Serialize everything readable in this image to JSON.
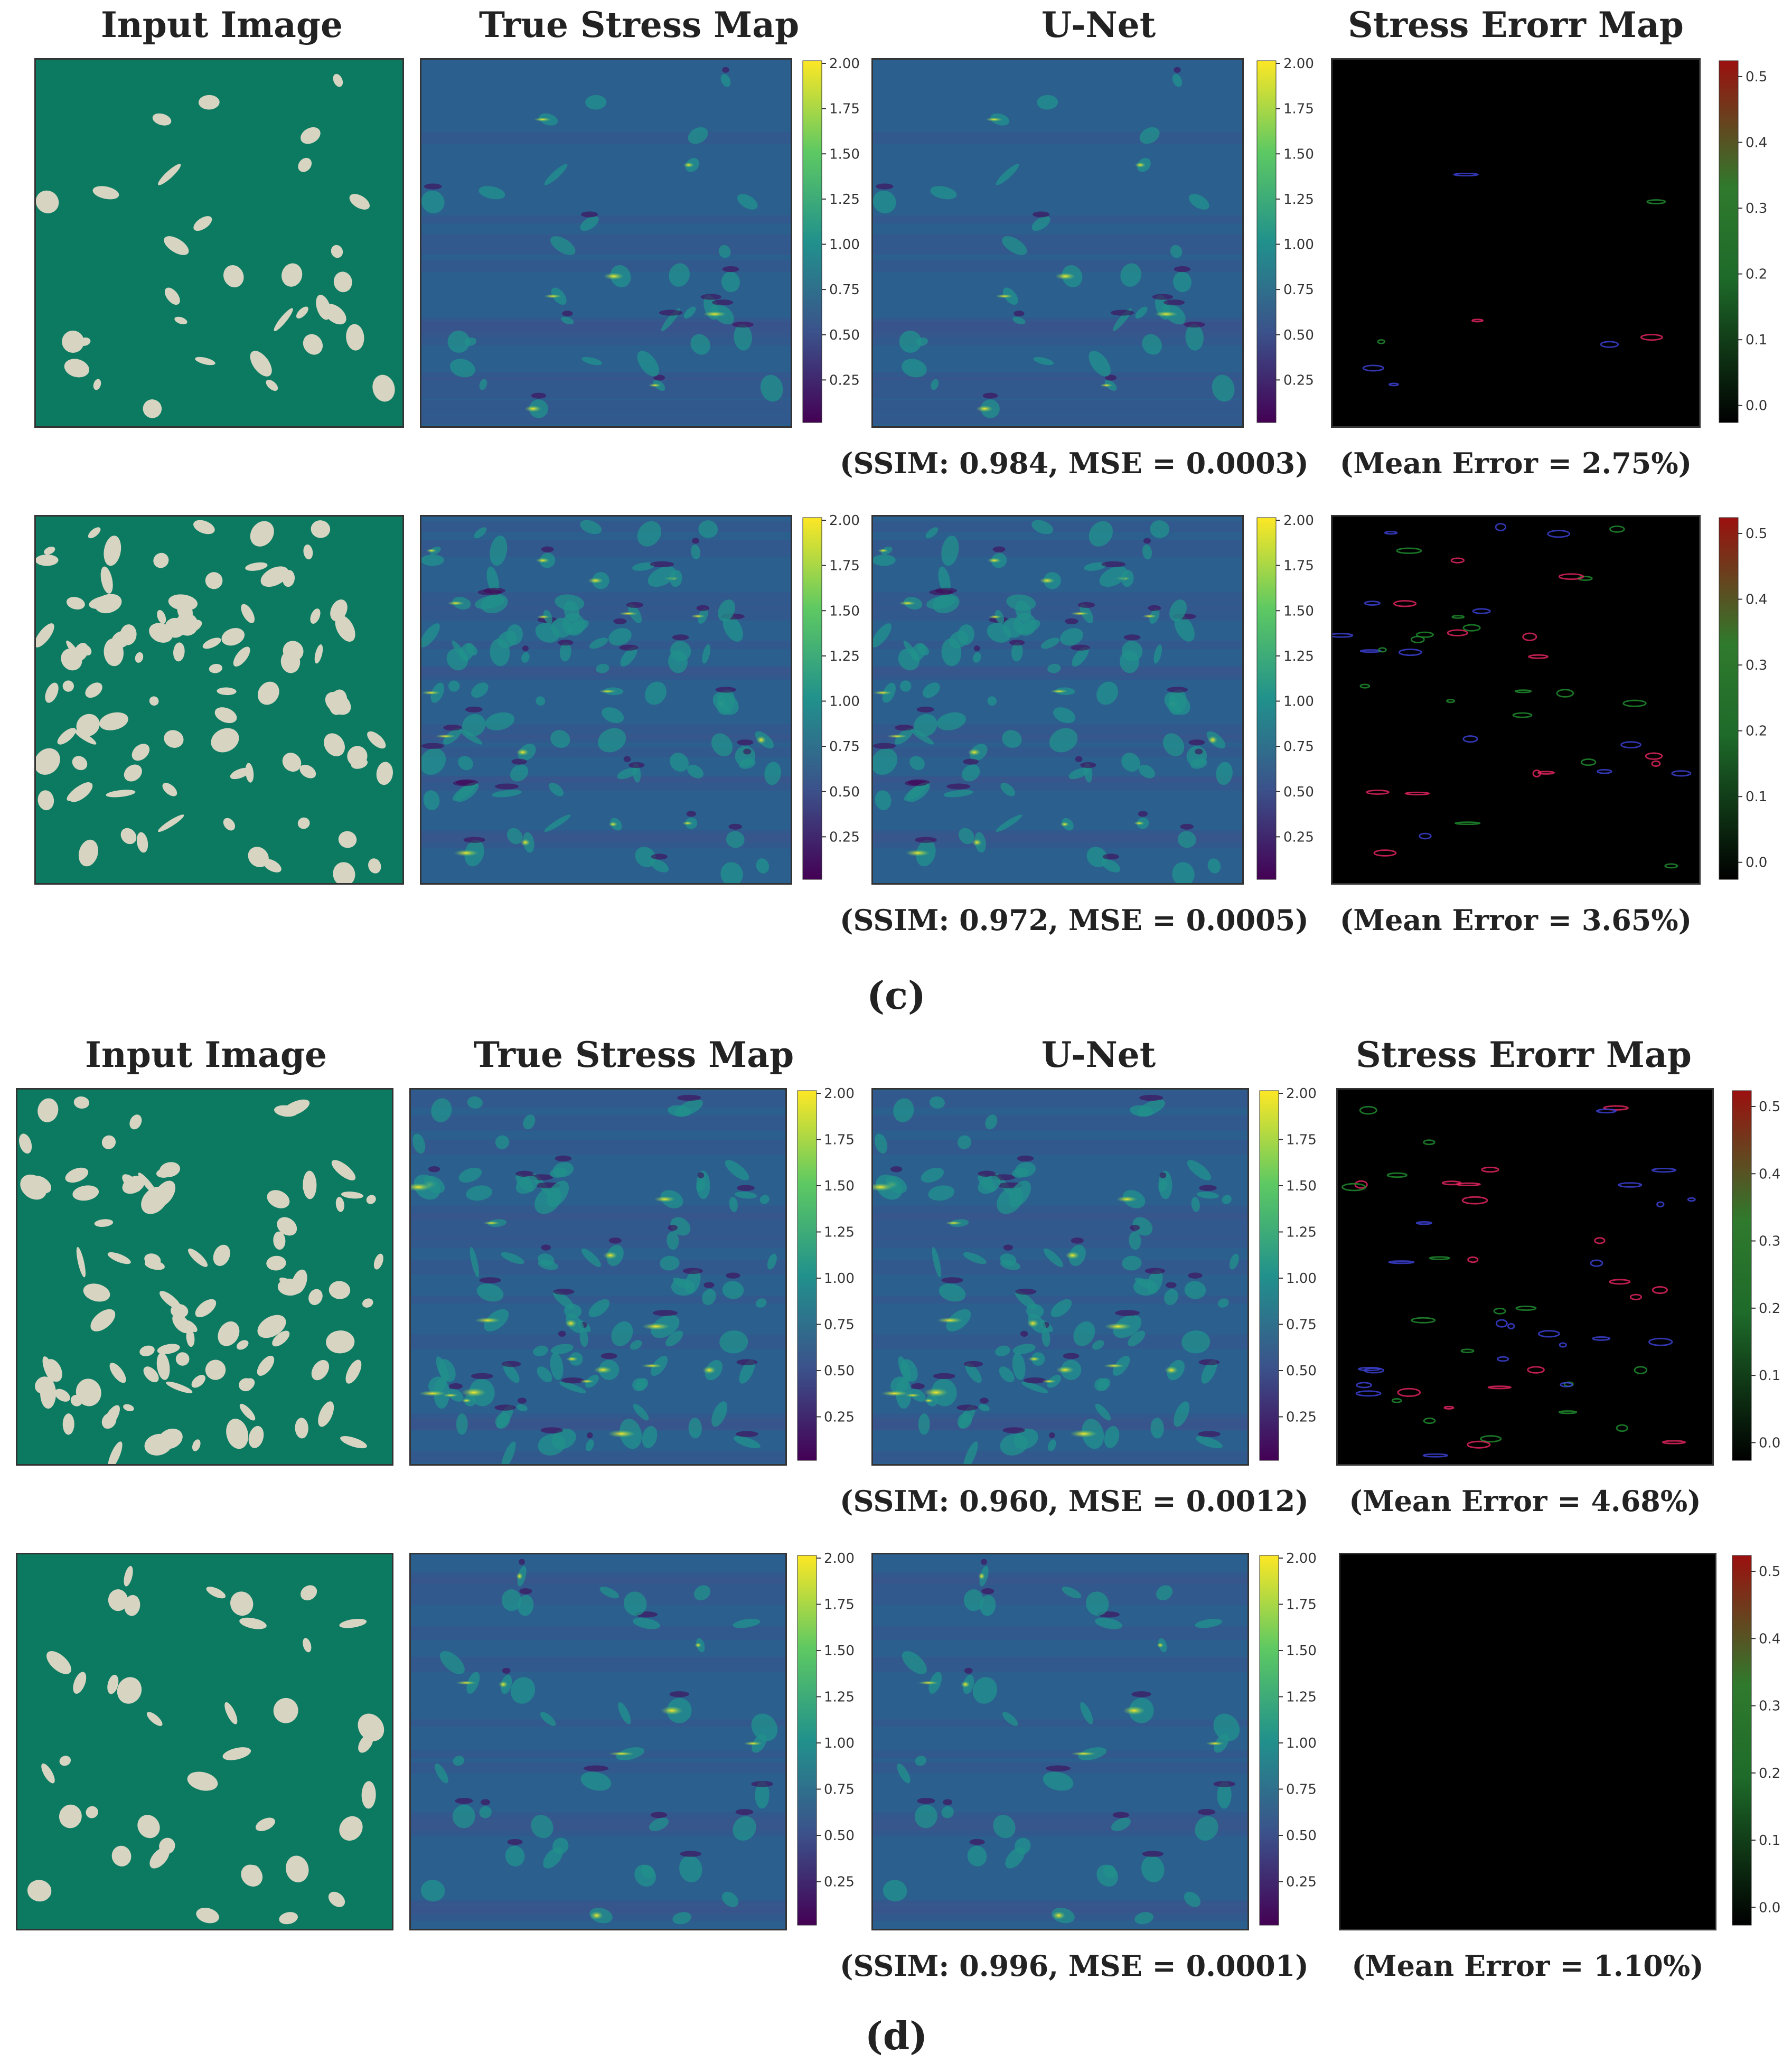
{
  "headers": {
    "input": "Input Image",
    "true_stress": "True Stress Map",
    "unet": "U-Net",
    "error": "Stress Erorr Map"
  },
  "panel_labels": {
    "c": "(c)",
    "d": "(d)"
  },
  "rows": [
    {
      "metrics": "(SSIM: 0.984, MSE = 0.0003)",
      "mean_error": "(Mean Error = 2.75%)"
    },
    {
      "metrics": "(SSIM: 0.972, MSE = 0.0005)",
      "mean_error": "(Mean Error = 3.65%)"
    },
    {
      "metrics": "(SSIM: 0.960, MSE = 0.0012)",
      "mean_error": "(Mean Error = 4.68%)"
    },
    {
      "metrics": "(SSIM: 0.996, MSE = 0.0001)",
      "mean_error": "(Mean Error = 1.10%)"
    }
  ],
  "colorbars": {
    "stress_ticks": [
      "2.00",
      "1.75",
      "1.50",
      "1.25",
      "1.00",
      "0.75",
      "0.50",
      "0.25"
    ],
    "error_ticks": [
      "0.5",
      "0.4",
      "0.3",
      "0.2",
      "0.1",
      "0.0"
    ]
  },
  "colors": {
    "matrix": "#0b7a60",
    "particle": "#d8d4c2",
    "viridis_low": "#440154",
    "viridis_mid": "#21918c",
    "viridis_high": "#fde725",
    "error_bg": "#000000"
  }
}
